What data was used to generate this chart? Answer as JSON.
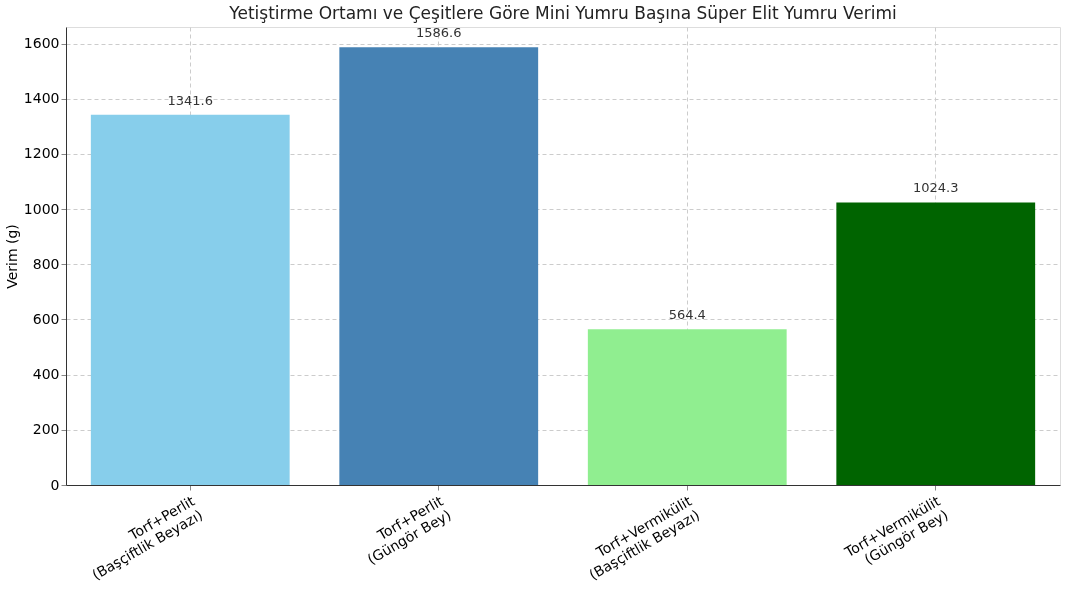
{
  "chart_data": {
    "type": "bar",
    "title": "Yetiştirme Ortamı ve Çeşitlere Göre Mini Yumru Başına Süper Elit Yumru Verimi",
    "ylabel": "Verim (g)",
    "categories": [
      "Torf+Perlit\n(Başçiftlik Beyazı)",
      "Torf+Perlit\n(Güngör Bey)",
      "Torf+Vermikülit\n(Başçiftlik Beyazı)",
      "Torf+Vermikülit\n(Güngör Bey)"
    ],
    "values": [
      1341.6,
      1586.6,
      564.4,
      1024.3
    ],
    "colors": [
      "#87ceeb",
      "#4682b4",
      "#90ee90",
      "#006400"
    ],
    "ylim": [
      0,
      1660
    ],
    "yticks": [
      0,
      200,
      400,
      600,
      800,
      1000,
      1200,
      1400,
      1600
    ],
    "grid": true,
    "data_labels": true
  }
}
